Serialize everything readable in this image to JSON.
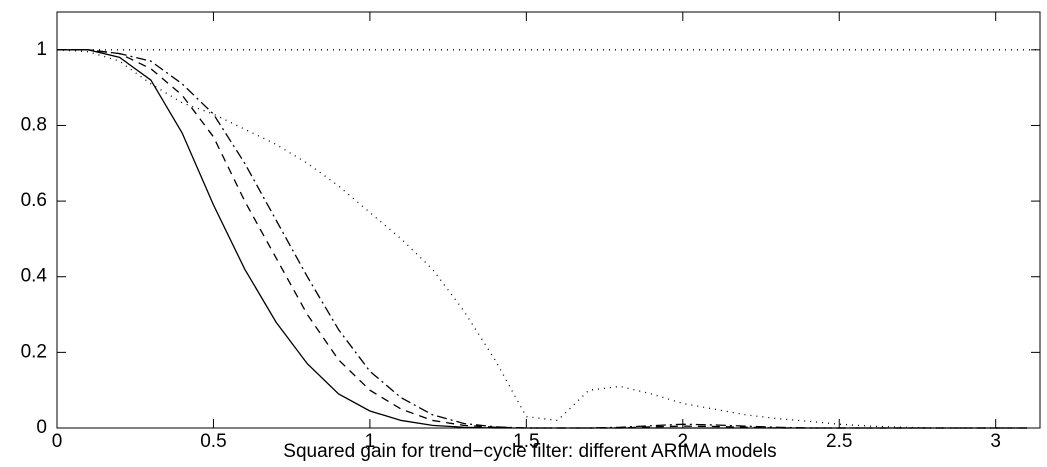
{
  "chart_data": {
    "type": "line",
    "xlabel": "Squared gain for trend−cycle filter: different ARIMA models",
    "x": [
      0,
      0.1,
      0.2,
      0.3,
      0.4,
      0.5,
      0.6,
      0.7,
      0.8,
      0.9,
      1,
      1.1,
      1.2,
      1.3,
      1.4,
      1.5,
      1.6,
      1.7,
      1.8,
      1.9,
      2,
      2.1,
      2.2,
      2.3,
      2.4,
      2.5,
      2.6,
      2.7,
      2.8,
      2.9,
      3,
      3.1
    ],
    "series": [
      {
        "color": "#000000",
        "dash": "none",
        "values": [
          1,
          1,
          0.98,
          0.92,
          0.78,
          0.59,
          0.42,
          0.28,
          0.17,
          0.09,
          0.045,
          0.02,
          0.007,
          0.002,
          0,
          0,
          0,
          0,
          0,
          0,
          0,
          0,
          0,
          0,
          0,
          0,
          0,
          0,
          0,
          0,
          0,
          0
        ]
      },
      {
        "color": "#000000",
        "dash": "8,6",
        "values": [
          1,
          1,
          0.99,
          0.95,
          0.88,
          0.77,
          0.6,
          0.45,
          0.3,
          0.18,
          0.1,
          0.05,
          0.02,
          0.007,
          0.002,
          0,
          0,
          0,
          0,
          0.003,
          0.005,
          0.004,
          0.002,
          0,
          0,
          0,
          0,
          0,
          0,
          0,
          0,
          0
        ]
      },
      {
        "color": "#000000",
        "dash": "10,4,2,4",
        "values": [
          1,
          1,
          0.99,
          0.97,
          0.91,
          0.83,
          0.7,
          0.55,
          0.4,
          0.26,
          0.15,
          0.08,
          0.035,
          0.012,
          0.003,
          0,
          0,
          0,
          0.002,
          0.006,
          0.01,
          0.008,
          0.005,
          0.002,
          0,
          0,
          0,
          0,
          0,
          0,
          0,
          0
        ]
      },
      {
        "color": "#000000",
        "dash": "1,5",
        "values": [
          1,
          0.995,
          0.97,
          0.91,
          0.86,
          0.83,
          0.79,
          0.75,
          0.7,
          0.64,
          0.57,
          0.5,
          0.42,
          0.31,
          0.18,
          0.03,
          0.02,
          0.1,
          0.11,
          0.09,
          0.065,
          0.05,
          0.035,
          0.025,
          0.018,
          0.01,
          0.005,
          0.002,
          0,
          0,
          0,
          0
        ]
      },
      {
        "color": "#000000",
        "dash": "1,5",
        "x": [
          0,
          3.1416
        ],
        "values": [
          1,
          1
        ]
      }
    ],
    "xlim": [
      0,
      3.1416
    ],
    "ylim": [
      0,
      1.1
    ],
    "xticks": [
      0,
      0.5,
      1,
      1.5,
      2,
      2.5,
      3
    ],
    "yticks": [
      0,
      0.2,
      0.4,
      0.6,
      0.8,
      1
    ],
    "grid": false
  }
}
